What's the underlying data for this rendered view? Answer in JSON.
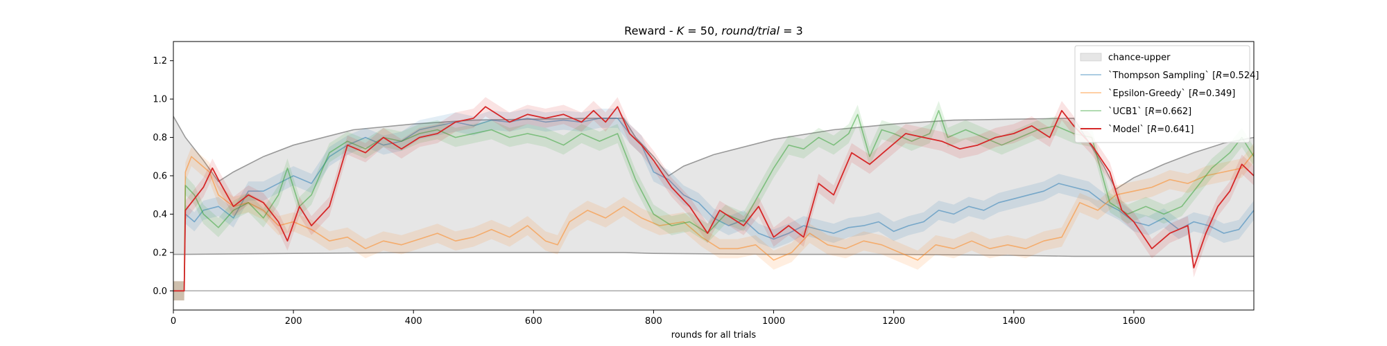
{
  "chart_data": {
    "type": "line",
    "title": "Reward - K = 50, round/trial = 3",
    "title_parts": {
      "prefix": "Reward - ",
      "k_label": "K",
      "k_value": " = 50, ",
      "round_label": "round/trial",
      "round_value": " = 3"
    },
    "xlabel": "rounds for all trials",
    "ylabel": "",
    "xlim": [
      0,
      1800
    ],
    "ylim": [
      -0.1,
      1.3
    ],
    "xticks": [
      "0",
      "200",
      "400",
      "600",
      "800",
      "1000",
      "1200",
      "1400",
      "1600"
    ],
    "yticks": [
      "0.0",
      "0.2",
      "0.4",
      "0.6",
      "0.8",
      "1.0",
      "1.2"
    ],
    "grid": false,
    "legend_position": "top-right",
    "chance_band": {
      "name": "chance-upper",
      "color": "#e6e6e6",
      "lower_x": [
        0,
        20,
        200,
        400,
        600,
        750,
        800,
        1000,
        1200,
        1400,
        1500,
        1600,
        1800
      ],
      "lower_y": [
        0.19,
        0.19,
        0.195,
        0.2,
        0.2,
        0.2,
        0.195,
        0.19,
        0.19,
        0.185,
        0.18,
        0.18,
        0.18
      ],
      "upper_x": [
        0,
        20,
        50,
        75,
        100,
        150,
        200,
        300,
        400,
        500,
        600,
        700,
        750,
        770,
        800,
        825,
        850,
        900,
        1000,
        1100,
        1200,
        1300,
        1400,
        1500,
        1520,
        1550,
        1570,
        1600,
        1650,
        1700,
        1750,
        1800
      ],
      "upper_y": [
        0.91,
        0.8,
        0.68,
        0.57,
        0.62,
        0.7,
        0.76,
        0.84,
        0.87,
        0.89,
        0.895,
        0.9,
        0.9,
        0.8,
        0.7,
        0.6,
        0.65,
        0.71,
        0.79,
        0.84,
        0.87,
        0.89,
        0.895,
        0.9,
        0.8,
        0.65,
        0.53,
        0.59,
        0.66,
        0.72,
        0.77,
        0.8
      ]
    },
    "zero_line": 0.0,
    "series": [
      {
        "name": "`Thompson Sampling` [R=0.524]",
        "legend_prefix": "`Thompson Sampling` [",
        "legend_var": "R",
        "legend_suffix": "=0.524]",
        "color": "#1f77b4",
        "opacity": 0.5,
        "x": [
          0,
          18,
          20,
          35,
          50,
          75,
          100,
          125,
          150,
          175,
          200,
          230,
          260,
          290,
          320,
          350,
          380,
          410,
          440,
          470,
          500,
          530,
          560,
          590,
          620,
          650,
          680,
          710,
          740,
          760,
          780,
          800,
          825,
          850,
          875,
          900,
          925,
          950,
          975,
          1000,
          1025,
          1050,
          1075,
          1100,
          1125,
          1150,
          1175,
          1200,
          1225,
          1250,
          1275,
          1300,
          1325,
          1350,
          1375,
          1400,
          1425,
          1450,
          1475,
          1500,
          1525,
          1550,
          1575,
          1600,
          1625,
          1650,
          1675,
          1700,
          1725,
          1750,
          1775,
          1800
        ],
        "y": [
          0.0,
          0.0,
          0.4,
          0.36,
          0.42,
          0.44,
          0.38,
          0.52,
          0.52,
          0.56,
          0.6,
          0.56,
          0.7,
          0.76,
          0.8,
          0.76,
          0.78,
          0.84,
          0.86,
          0.88,
          0.86,
          0.89,
          0.88,
          0.9,
          0.88,
          0.89,
          0.88,
          0.9,
          0.9,
          0.82,
          0.76,
          0.62,
          0.58,
          0.5,
          0.46,
          0.38,
          0.34,
          0.37,
          0.3,
          0.27,
          0.3,
          0.34,
          0.32,
          0.3,
          0.33,
          0.34,
          0.36,
          0.31,
          0.34,
          0.36,
          0.42,
          0.4,
          0.44,
          0.42,
          0.46,
          0.48,
          0.5,
          0.52,
          0.56,
          0.54,
          0.52,
          0.46,
          0.42,
          0.36,
          0.34,
          0.38,
          0.32,
          0.36,
          0.34,
          0.3,
          0.32,
          0.42
        ]
      },
      {
        "name": "`Epsilon-Greedy` [R=0.349]",
        "legend_prefix": "`Epsilon-Greedy` [",
        "legend_var": "R",
        "legend_suffix": "=0.349]",
        "color": "#ff7f0e",
        "opacity": 0.5,
        "x": [
          0,
          18,
          20,
          30,
          45,
          60,
          75,
          100,
          125,
          150,
          175,
          200,
          230,
          260,
          290,
          320,
          350,
          380,
          410,
          440,
          470,
          500,
          530,
          560,
          590,
          620,
          640,
          660,
          690,
          720,
          750,
          780,
          810,
          850,
          880,
          910,
          940,
          970,
          1000,
          1030,
          1060,
          1090,
          1120,
          1150,
          1180,
          1210,
          1240,
          1270,
          1300,
          1330,
          1360,
          1390,
          1420,
          1450,
          1480,
          1510,
          1540,
          1570,
          1600,
          1630,
          1660,
          1690,
          1720,
          1750,
          1780,
          1800
        ],
        "y": [
          0.0,
          0.0,
          0.62,
          0.7,
          0.66,
          0.62,
          0.5,
          0.44,
          0.46,
          0.42,
          0.34,
          0.36,
          0.32,
          0.26,
          0.28,
          0.22,
          0.26,
          0.24,
          0.27,
          0.3,
          0.26,
          0.28,
          0.32,
          0.28,
          0.34,
          0.26,
          0.24,
          0.36,
          0.42,
          0.38,
          0.44,
          0.38,
          0.34,
          0.36,
          0.28,
          0.22,
          0.22,
          0.24,
          0.16,
          0.2,
          0.3,
          0.24,
          0.22,
          0.26,
          0.24,
          0.2,
          0.16,
          0.24,
          0.22,
          0.26,
          0.22,
          0.24,
          0.22,
          0.26,
          0.28,
          0.46,
          0.42,
          0.5,
          0.52,
          0.54,
          0.58,
          0.56,
          0.6,
          0.62,
          0.64,
          0.72
        ]
      },
      {
        "name": "`UCB1` [R=0.662]",
        "legend_prefix": "`UCB1` [",
        "legend_var": "R",
        "legend_suffix": "=0.662]",
        "color": "#2ca02c",
        "opacity": 0.5,
        "x": [
          0,
          18,
          20,
          35,
          50,
          75,
          100,
          125,
          150,
          175,
          190,
          210,
          230,
          260,
          290,
          320,
          350,
          380,
          410,
          440,
          470,
          500,
          530,
          560,
          590,
          620,
          650,
          680,
          710,
          740,
          770,
          800,
          830,
          860,
          890,
          920,
          950,
          975,
          1000,
          1025,
          1050,
          1075,
          1100,
          1125,
          1140,
          1160,
          1180,
          1200,
          1230,
          1260,
          1275,
          1290,
          1320,
          1350,
          1380,
          1410,
          1440,
          1470,
          1500,
          1530,
          1560,
          1590,
          1620,
          1650,
          1680,
          1700,
          1730,
          1760,
          1780,
          1800
        ],
        "y": [
          0.0,
          0.0,
          0.55,
          0.5,
          0.4,
          0.33,
          0.42,
          0.46,
          0.38,
          0.5,
          0.64,
          0.44,
          0.5,
          0.72,
          0.78,
          0.74,
          0.8,
          0.78,
          0.82,
          0.84,
          0.8,
          0.82,
          0.84,
          0.8,
          0.82,
          0.8,
          0.76,
          0.82,
          0.78,
          0.82,
          0.58,
          0.4,
          0.34,
          0.36,
          0.3,
          0.4,
          0.36,
          0.5,
          0.64,
          0.76,
          0.74,
          0.8,
          0.76,
          0.82,
          0.92,
          0.7,
          0.84,
          0.82,
          0.78,
          0.82,
          0.94,
          0.8,
          0.84,
          0.8,
          0.76,
          0.8,
          0.84,
          0.86,
          0.82,
          0.8,
          0.46,
          0.4,
          0.44,
          0.4,
          0.44,
          0.52,
          0.64,
          0.72,
          0.8,
          0.7
        ]
      },
      {
        "name": "`Model` [R=0.641]",
        "legend_prefix": "`Model` [",
        "legend_var": "R",
        "legend_suffix": "=0.641]",
        "color": "#d62728",
        "opacity": 1.0,
        "x": [
          0,
          18,
          20,
          35,
          50,
          65,
          75,
          100,
          125,
          150,
          175,
          190,
          210,
          230,
          260,
          290,
          320,
          350,
          380,
          410,
          440,
          470,
          500,
          520,
          540,
          560,
          590,
          620,
          650,
          680,
          700,
          720,
          740,
          760,
          780,
          800,
          830,
          860,
          890,
          910,
          930,
          950,
          975,
          1000,
          1025,
          1050,
          1075,
          1100,
          1130,
          1160,
          1190,
          1220,
          1250,
          1280,
          1310,
          1340,
          1370,
          1400,
          1430,
          1460,
          1480,
          1500,
          1530,
          1560,
          1580,
          1600,
          1630,
          1660,
          1690,
          1700,
          1720,
          1740,
          1760,
          1780,
          1800
        ],
        "y": [
          0.0,
          0.0,
          0.42,
          0.48,
          0.54,
          0.64,
          0.58,
          0.44,
          0.5,
          0.46,
          0.36,
          0.26,
          0.44,
          0.34,
          0.44,
          0.76,
          0.72,
          0.8,
          0.74,
          0.8,
          0.82,
          0.88,
          0.9,
          0.96,
          0.92,
          0.88,
          0.92,
          0.9,
          0.92,
          0.88,
          0.94,
          0.88,
          0.96,
          0.82,
          0.76,
          0.68,
          0.54,
          0.44,
          0.3,
          0.42,
          0.38,
          0.34,
          0.44,
          0.28,
          0.34,
          0.28,
          0.56,
          0.5,
          0.72,
          0.66,
          0.74,
          0.82,
          0.8,
          0.78,
          0.74,
          0.76,
          0.8,
          0.82,
          0.86,
          0.8,
          0.94,
          0.86,
          0.76,
          0.62,
          0.42,
          0.36,
          0.22,
          0.3,
          0.34,
          0.12,
          0.3,
          0.44,
          0.52,
          0.66,
          0.6
        ]
      }
    ]
  }
}
